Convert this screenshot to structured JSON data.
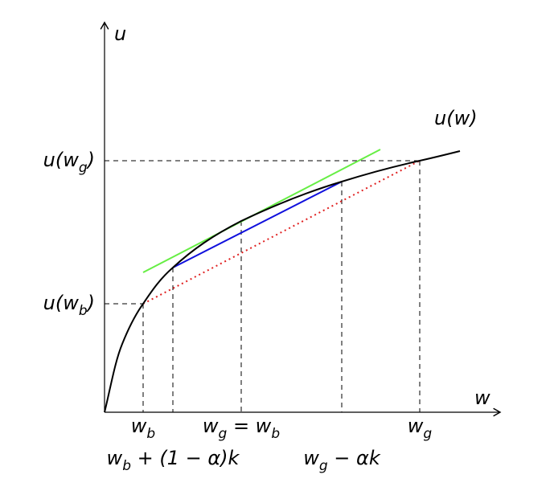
{
  "axes": {
    "y_label": "u",
    "x_label": "w"
  },
  "curve_label": [
    {
      "text": "u(w)"
    }
  ],
  "y_labels": [
    [
      {
        "text": "u(w"
      },
      {
        "sub": "g"
      },
      {
        "text": ")"
      }
    ],
    [
      {
        "text": "u(w"
      },
      {
        "sub": "b"
      },
      {
        "text": ")"
      }
    ]
  ],
  "x_labels": [
    [
      {
        "text": "w"
      },
      {
        "sub": "b"
      }
    ],
    [
      {
        "text": "w"
      },
      {
        "sub": "g"
      },
      {
        "text": " = w"
      },
      {
        "sub": "b"
      }
    ],
    [
      {
        "text": "w"
      },
      {
        "sub": "g"
      }
    ],
    [
      {
        "text": "w"
      },
      {
        "sub": "b"
      },
      {
        "text": " + (1 − α)k"
      }
    ],
    [
      {
        "text": "w"
      },
      {
        "sub": "g"
      },
      {
        "text": " − αk"
      }
    ]
  ]
}
